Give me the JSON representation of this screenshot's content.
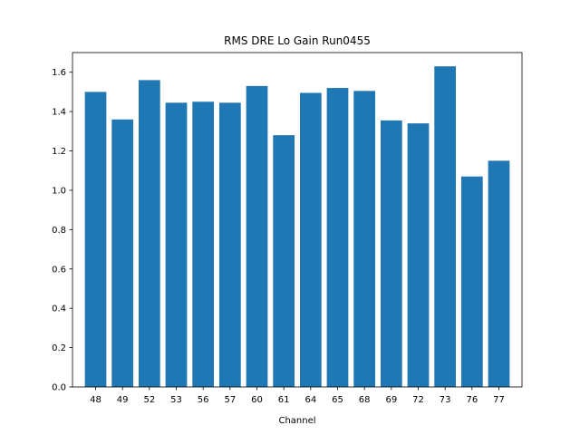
{
  "chart_data": {
    "type": "bar",
    "title": "RMS DRE Lo Gain Run0455",
    "xlabel": "Channel",
    "ylabel": "",
    "categories": [
      "48",
      "49",
      "52",
      "53",
      "56",
      "57",
      "60",
      "61",
      "64",
      "65",
      "68",
      "69",
      "72",
      "73",
      "76",
      "77"
    ],
    "values": [
      1.5,
      1.36,
      1.56,
      1.445,
      1.45,
      1.445,
      1.53,
      1.28,
      1.495,
      1.52,
      1.505,
      1.355,
      1.34,
      1.63,
      1.07,
      1.15
    ],
    "ylim": [
      0,
      1.7
    ],
    "yticks": [
      "0.0",
      "0.2",
      "0.4",
      "0.6",
      "0.8",
      "1.0",
      "1.2",
      "1.4",
      "1.6"
    ],
    "bar_color": "#1f77b4",
    "grid": false,
    "legend": "none"
  }
}
